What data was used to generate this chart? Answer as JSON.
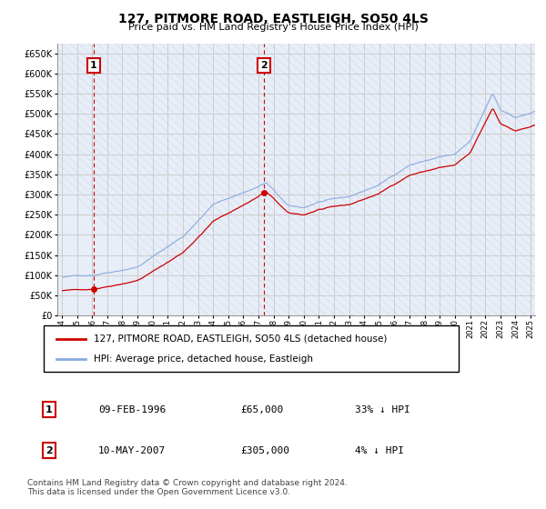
{
  "title": "127, PITMORE ROAD, EASTLEIGH, SO50 4LS",
  "subtitle": "Price paid vs. HM Land Registry's House Price Index (HPI)",
  "legend_line1": "127, PITMORE ROAD, EASTLEIGH, SO50 4LS (detached house)",
  "legend_line2": "HPI: Average price, detached house, Eastleigh",
  "sale1_label": "1",
  "sale1_date": "09-FEB-1996",
  "sale1_price": "£65,000",
  "sale1_hpi": "33% ↓ HPI",
  "sale1_year": 1996.1,
  "sale1_value": 65000,
  "sale2_label": "2",
  "sale2_date": "10-MAY-2007",
  "sale2_price": "£305,000",
  "sale2_hpi": "4% ↓ HPI",
  "sale2_year": 2007.37,
  "sale2_value": 305000,
  "price_color": "#cc0000",
  "hpi_color": "#88aadd",
  "annotation_color": "#cc0000",
  "grid_color": "#cccccc",
  "background_color": "#ffffff",
  "plot_bg_color": "#e8eef8",
  "hatch_color": "#d0d8e8",
  "ylim": [
    0,
    675000
  ],
  "yticks": [
    0,
    50000,
    100000,
    150000,
    200000,
    250000,
    300000,
    350000,
    400000,
    450000,
    500000,
    550000,
    600000,
    650000
  ],
  "footnote": "Contains HM Land Registry data © Crown copyright and database right 2024.\nThis data is licensed under the Open Government Licence v3.0."
}
